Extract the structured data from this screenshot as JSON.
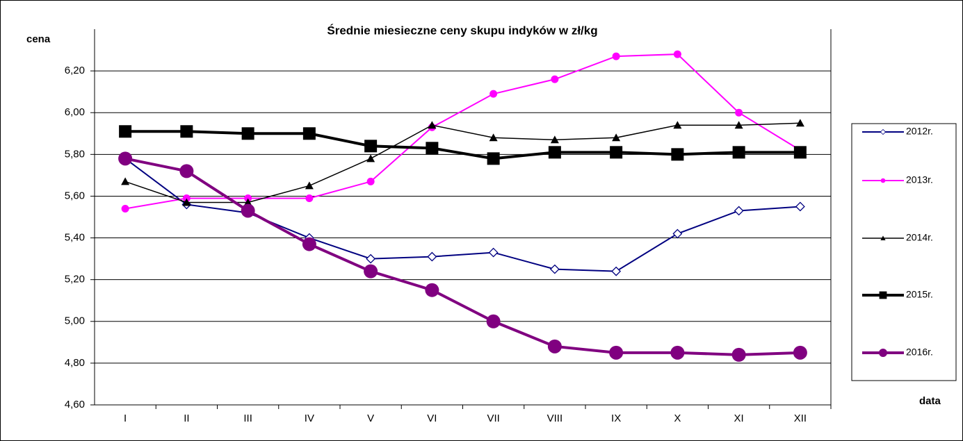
{
  "chart_data": {
    "type": "line",
    "title": "Średnie miesieczne ceny skupu indyków w zł/kg",
    "y_label": "cena",
    "x_label": "data",
    "categories": [
      "I",
      "II",
      "III",
      "IV",
      "V",
      "VI",
      "VII",
      "VIII",
      "IX",
      "X",
      "XI",
      "XII"
    ],
    "ylim": [
      4.6,
      6.4
    ],
    "yticks": [
      {
        "value": 4.6,
        "label": "4,60"
      },
      {
        "value": 4.8,
        "label": "4,80"
      },
      {
        "value": 5.0,
        "label": "5,00"
      },
      {
        "value": 5.2,
        "label": "5,20"
      },
      {
        "value": 5.4,
        "label": "5,40"
      },
      {
        "value": 5.6,
        "label": "5,60"
      },
      {
        "value": 5.8,
        "label": "5,80"
      },
      {
        "value": 6.0,
        "label": "6,00"
      },
      {
        "value": 6.2,
        "label": "6,20"
      }
    ],
    "grid": true,
    "legend": "right",
    "series": [
      {
        "name": "2012r.",
        "color": "#000080",
        "marker": "diamond",
        "line_width": 2,
        "values": [
          5.78,
          5.56,
          5.52,
          5.4,
          5.3,
          5.31,
          5.33,
          5.25,
          5.24,
          5.42,
          5.53,
          5.55
        ]
      },
      {
        "name": "2013r.",
        "color": "#ff00ff",
        "marker": "circle",
        "line_width": 2,
        "values": [
          5.54,
          5.59,
          5.59,
          5.59,
          5.67,
          5.93,
          6.09,
          6.16,
          6.27,
          6.28,
          6.0,
          5.82
        ]
      },
      {
        "name": "2014r.",
        "color": "#000000",
        "marker": "triangle",
        "line_width": 1.5,
        "values": [
          5.67,
          5.57,
          5.57,
          5.65,
          5.78,
          5.94,
          5.88,
          5.87,
          5.88,
          5.94,
          5.94,
          5.95
        ]
      },
      {
        "name": "2015r.",
        "color": "#000000",
        "marker": "square",
        "line_width": 4,
        "values": [
          5.91,
          5.91,
          5.9,
          5.9,
          5.84,
          5.83,
          5.78,
          5.81,
          5.81,
          5.8,
          5.81,
          5.81
        ]
      },
      {
        "name": "2016r.",
        "color": "#800080",
        "marker": "bigcircle",
        "line_width": 4,
        "values": [
          5.78,
          5.72,
          5.53,
          5.37,
          5.24,
          5.15,
          5.0,
          4.88,
          4.85,
          4.85,
          4.84,
          4.85
        ]
      }
    ]
  }
}
